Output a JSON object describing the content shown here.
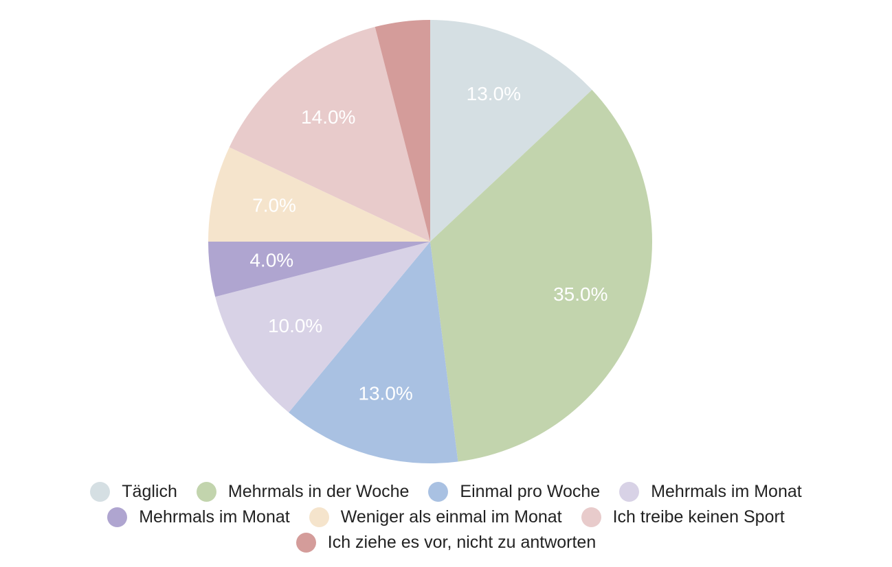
{
  "chart_data": {
    "type": "pie",
    "categories": [
      "Täglich",
      "Mehrmals in der Woche",
      "Einmal pro Woche",
      "Mehrmals im Monat",
      "Mehrmals im Monat",
      "Weniger als einmal im Monat",
      "Ich treibe keinen Sport",
      "Ich ziehe es vor, nicht zu antworten"
    ],
    "values": [
      13,
      35,
      13,
      10,
      4,
      7,
      14,
      4
    ],
    "value_labels": [
      "13.0%",
      "35.0%",
      "13.0%",
      "10.0%",
      "4.0%",
      "7.0%",
      "14.0%",
      null
    ],
    "colors": [
      "#d5dfe3",
      "#c2d4ad",
      "#a9c1e2",
      "#d8d2e6",
      "#afa5d0",
      "#f5e4cc",
      "#e8cbcb",
      "#d49c9a"
    ]
  }
}
